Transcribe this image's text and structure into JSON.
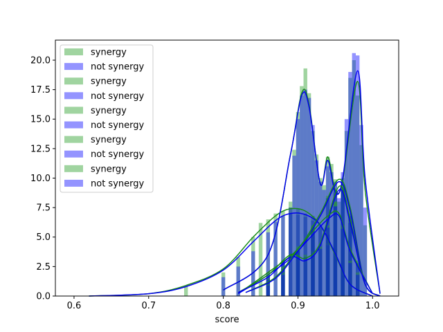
{
  "chart_data": {
    "type": "histogram",
    "xlabel": "score",
    "ylabel": "",
    "xlim": [
      0.575,
      1.035
    ],
    "ylim": [
      0,
      21.7
    ],
    "xticks": [
      0.6,
      0.7,
      0.8,
      0.9,
      1.0
    ],
    "xtick_labels": [
      "0.6",
      "0.7",
      "0.8",
      "0.9",
      "1.0"
    ],
    "yticks": [
      0,
      2.5,
      5,
      7.5,
      10,
      12.5,
      15,
      17.5,
      20
    ],
    "ytick_labels": [
      "0.0",
      "2.5",
      "5.0",
      "7.5",
      "10.0",
      "12.5",
      "15.0",
      "17.5",
      "20.0"
    ],
    "grid": false,
    "legend_position": "top-left",
    "colors": {
      "synergy": "#2ca02c",
      "not_synergy": "#0000ff"
    },
    "legend": [
      "synergy",
      "not synergy",
      "synergy",
      "not synergy",
      "synergy",
      "not synergy",
      "synergy",
      "not synergy",
      "synergy",
      "not synergy"
    ],
    "series": [
      {
        "name": "synergy",
        "kind": "green",
        "bins": [
          [
            0.75,
            0.8
          ],
          [
            0.8,
            2.0
          ],
          [
            0.82,
            3.3
          ],
          [
            0.84,
            5.0
          ],
          [
            0.85,
            6.2
          ],
          [
            0.86,
            6.5
          ],
          [
            0.87,
            7.0
          ],
          [
            0.88,
            7.2
          ],
          [
            0.89,
            7.5
          ],
          [
            0.9,
            7.4
          ],
          [
            0.91,
            7.0
          ],
          [
            0.92,
            6.8
          ],
          [
            0.93,
            6.0
          ],
          [
            0.94,
            5.2
          ],
          [
            0.95,
            4.0
          ],
          [
            0.96,
            2.5
          ],
          [
            0.97,
            1.0
          ]
        ],
        "kde": [
          [
            0.62,
            0
          ],
          [
            0.7,
            0.2
          ],
          [
            0.75,
            0.9
          ],
          [
            0.8,
            2.3
          ],
          [
            0.84,
            5.0
          ],
          [
            0.87,
            6.8
          ],
          [
            0.89,
            7.4
          ],
          [
            0.91,
            7.2
          ],
          [
            0.93,
            6.0
          ],
          [
            0.95,
            3.5
          ],
          [
            0.97,
            1.0
          ],
          [
            1.0,
            0
          ]
        ]
      },
      {
        "name": "not synergy",
        "kind": "blue",
        "bins": [
          [
            0.8,
            1.6
          ],
          [
            0.82,
            2.5
          ],
          [
            0.84,
            3.8
          ],
          [
            0.86,
            5.4
          ],
          [
            0.87,
            6.3
          ],
          [
            0.88,
            6.8
          ],
          [
            0.89,
            7.0
          ],
          [
            0.9,
            6.9
          ],
          [
            0.91,
            6.7
          ],
          [
            0.92,
            6.4
          ],
          [
            0.93,
            5.8
          ],
          [
            0.94,
            5.2
          ],
          [
            0.95,
            4.0
          ],
          [
            0.96,
            2.8
          ]
        ],
        "kde": [
          [
            0.62,
            0
          ],
          [
            0.7,
            0.2
          ],
          [
            0.75,
            0.8
          ],
          [
            0.8,
            2.2
          ],
          [
            0.84,
            4.6
          ],
          [
            0.87,
            6.4
          ],
          [
            0.89,
            7.0
          ],
          [
            0.91,
            6.9
          ],
          [
            0.93,
            6.0
          ],
          [
            0.95,
            3.6
          ],
          [
            0.97,
            1.0
          ],
          [
            1.0,
            0
          ]
        ]
      },
      {
        "name": "synergy",
        "kind": "green",
        "bins": [
          [
            0.89,
            8.0
          ],
          [
            0.895,
            12.4
          ],
          [
            0.9,
            15.6
          ],
          [
            0.905,
            17.8
          ],
          [
            0.91,
            19.3
          ],
          [
            0.915,
            17.2
          ],
          [
            0.92,
            14.0
          ],
          [
            0.925,
            12.0
          ],
          [
            0.93,
            10.0
          ],
          [
            0.935,
            9.4
          ],
          [
            0.94,
            11.8
          ],
          [
            0.945,
            11.2
          ],
          [
            0.95,
            9.0
          ],
          [
            0.955,
            8.0
          ],
          [
            0.96,
            10.0
          ],
          [
            0.965,
            14.0
          ],
          [
            0.97,
            18.5
          ],
          [
            0.975,
            20.0
          ],
          [
            0.98,
            17.0
          ],
          [
            0.985,
            12.8
          ],
          [
            0.99,
            6.0
          ]
        ],
        "kde": [
          [
            0.8,
            0.5
          ],
          [
            0.86,
            3.5
          ],
          [
            0.89,
            12.0
          ],
          [
            0.905,
            17.2
          ],
          [
            0.915,
            16.2
          ],
          [
            0.93,
            9.5
          ],
          [
            0.94,
            11.8
          ],
          [
            0.95,
            9.0
          ],
          [
            0.96,
            9.8
          ],
          [
            0.98,
            18.2
          ],
          [
            0.99,
            9.0
          ],
          [
            1.01,
            0.2
          ]
        ]
      },
      {
        "name": "not synergy",
        "kind": "blue",
        "bins": [
          [
            0.89,
            7.5
          ],
          [
            0.895,
            11.9
          ],
          [
            0.9,
            15.0
          ],
          [
            0.905,
            17.0
          ],
          [
            0.91,
            17.5
          ],
          [
            0.915,
            16.8
          ],
          [
            0.92,
            14.5
          ],
          [
            0.925,
            11.5
          ],
          [
            0.93,
            9.7
          ],
          [
            0.935,
            9.0
          ],
          [
            0.94,
            11.0
          ],
          [
            0.945,
            10.5
          ],
          [
            0.95,
            8.8
          ],
          [
            0.955,
            8.3
          ],
          [
            0.96,
            10.5
          ],
          [
            0.965,
            15.0
          ],
          [
            0.97,
            19.0
          ],
          [
            0.975,
            20.6
          ],
          [
            0.98,
            20.4
          ],
          [
            0.985,
            14.5
          ],
          [
            0.99,
            7.5
          ]
        ],
        "kde": [
          [
            0.8,
            0.5
          ],
          [
            0.86,
            3.5
          ],
          [
            0.89,
            12.0
          ],
          [
            0.905,
            17.0
          ],
          [
            0.915,
            16.0
          ],
          [
            0.93,
            9.5
          ],
          [
            0.94,
            11.5
          ],
          [
            0.95,
            8.8
          ],
          [
            0.96,
            10.0
          ],
          [
            0.98,
            19.1
          ],
          [
            0.99,
            10.0
          ],
          [
            1.01,
            0.2
          ]
        ]
      },
      {
        "name": "synergy",
        "kind": "green",
        "bins": [
          [
            0.86,
            2.0
          ],
          [
            0.88,
            3.0
          ],
          [
            0.9,
            4.2
          ],
          [
            0.92,
            6.0
          ],
          [
            0.94,
            8.5
          ],
          [
            0.95,
            9.9
          ],
          [
            0.96,
            9.4
          ],
          [
            0.97,
            7.0
          ],
          [
            0.98,
            3.0
          ]
        ],
        "kde": [
          [
            0.82,
            0.2
          ],
          [
            0.86,
            2.0
          ],
          [
            0.9,
            4.0
          ],
          [
            0.93,
            7.0
          ],
          [
            0.955,
            9.9
          ],
          [
            0.97,
            7.5
          ],
          [
            0.99,
            1.0
          ],
          [
            1.01,
            0
          ]
        ]
      },
      {
        "name": "not synergy",
        "kind": "blue",
        "bins": [
          [
            0.86,
            1.8
          ],
          [
            0.88,
            2.8
          ],
          [
            0.9,
            4.0
          ],
          [
            0.92,
            5.8
          ],
          [
            0.94,
            8.3
          ],
          [
            0.95,
            9.7
          ],
          [
            0.96,
            9.2
          ],
          [
            0.97,
            6.8
          ],
          [
            0.98,
            2.8
          ]
        ],
        "kde": [
          [
            0.82,
            0.2
          ],
          [
            0.86,
            1.8
          ],
          [
            0.9,
            3.8
          ],
          [
            0.93,
            6.8
          ],
          [
            0.955,
            9.7
          ],
          [
            0.97,
            7.2
          ],
          [
            0.99,
            1.0
          ],
          [
            1.01,
            0
          ]
        ]
      },
      {
        "name": "synergy",
        "kind": "green",
        "bins": [
          [
            0.86,
            1.5
          ],
          [
            0.88,
            2.5
          ],
          [
            0.9,
            3.5
          ],
          [
            0.92,
            3.8
          ],
          [
            0.94,
            4.5
          ],
          [
            0.95,
            8.0
          ],
          [
            0.96,
            9.4
          ],
          [
            0.97,
            6.5
          ],
          [
            0.98,
            2.0
          ]
        ],
        "kde": [
          [
            0.82,
            0.3
          ],
          [
            0.86,
            1.8
          ],
          [
            0.89,
            3.5
          ],
          [
            0.91,
            3.2
          ],
          [
            0.93,
            4.5
          ],
          [
            0.955,
            9.3
          ],
          [
            0.97,
            6.5
          ],
          [
            0.99,
            1.0
          ],
          [
            1.01,
            0
          ]
        ]
      },
      {
        "name": "not synergy",
        "kind": "blue",
        "bins": [
          [
            0.86,
            1.4
          ],
          [
            0.88,
            2.3
          ],
          [
            0.9,
            3.3
          ],
          [
            0.92,
            3.6
          ],
          [
            0.94,
            4.3
          ],
          [
            0.95,
            7.6
          ],
          [
            0.96,
            9.0
          ],
          [
            0.97,
            6.2
          ],
          [
            0.98,
            1.8
          ]
        ],
        "kde": [
          [
            0.82,
            0.3
          ],
          [
            0.86,
            1.6
          ],
          [
            0.89,
            3.3
          ],
          [
            0.91,
            3.0
          ],
          [
            0.93,
            4.3
          ],
          [
            0.955,
            9.0
          ],
          [
            0.97,
            6.2
          ],
          [
            0.99,
            1.0
          ],
          [
            1.01,
            0
          ]
        ]
      },
      {
        "name": "synergy",
        "kind": "green",
        "bins": [
          [
            0.86,
            1.0
          ],
          [
            0.88,
            2.0
          ],
          [
            0.9,
            4.0
          ],
          [
            0.91,
            3.5
          ],
          [
            0.92,
            5.8
          ],
          [
            0.93,
            4.2
          ],
          [
            0.94,
            6.0
          ],
          [
            0.95,
            8.0
          ],
          [
            0.96,
            6.0
          ],
          [
            0.97,
            3.0
          ]
        ],
        "kde": [
          [
            0.83,
            0.3
          ],
          [
            0.87,
            1.6
          ],
          [
            0.9,
            4.0
          ],
          [
            0.92,
            5.5
          ],
          [
            0.94,
            6.8
          ],
          [
            0.955,
            7.0
          ],
          [
            0.97,
            4.0
          ],
          [
            1.0,
            0.2
          ]
        ]
      },
      {
        "name": "not synergy",
        "kind": "blue",
        "bins": [
          [
            0.86,
            0.9
          ],
          [
            0.88,
            1.8
          ],
          [
            0.9,
            3.8
          ],
          [
            0.91,
            3.3
          ],
          [
            0.92,
            5.5
          ],
          [
            0.93,
            4.0
          ],
          [
            0.94,
            5.8
          ],
          [
            0.95,
            7.6
          ],
          [
            0.96,
            5.7
          ],
          [
            0.97,
            2.8
          ]
        ],
        "kde": [
          [
            0.83,
            0.3
          ],
          [
            0.87,
            1.5
          ],
          [
            0.9,
            3.8
          ],
          [
            0.92,
            5.2
          ],
          [
            0.94,
            6.5
          ],
          [
            0.955,
            6.8
          ],
          [
            0.97,
            3.8
          ],
          [
            1.0,
            0.2
          ]
        ]
      }
    ]
  }
}
